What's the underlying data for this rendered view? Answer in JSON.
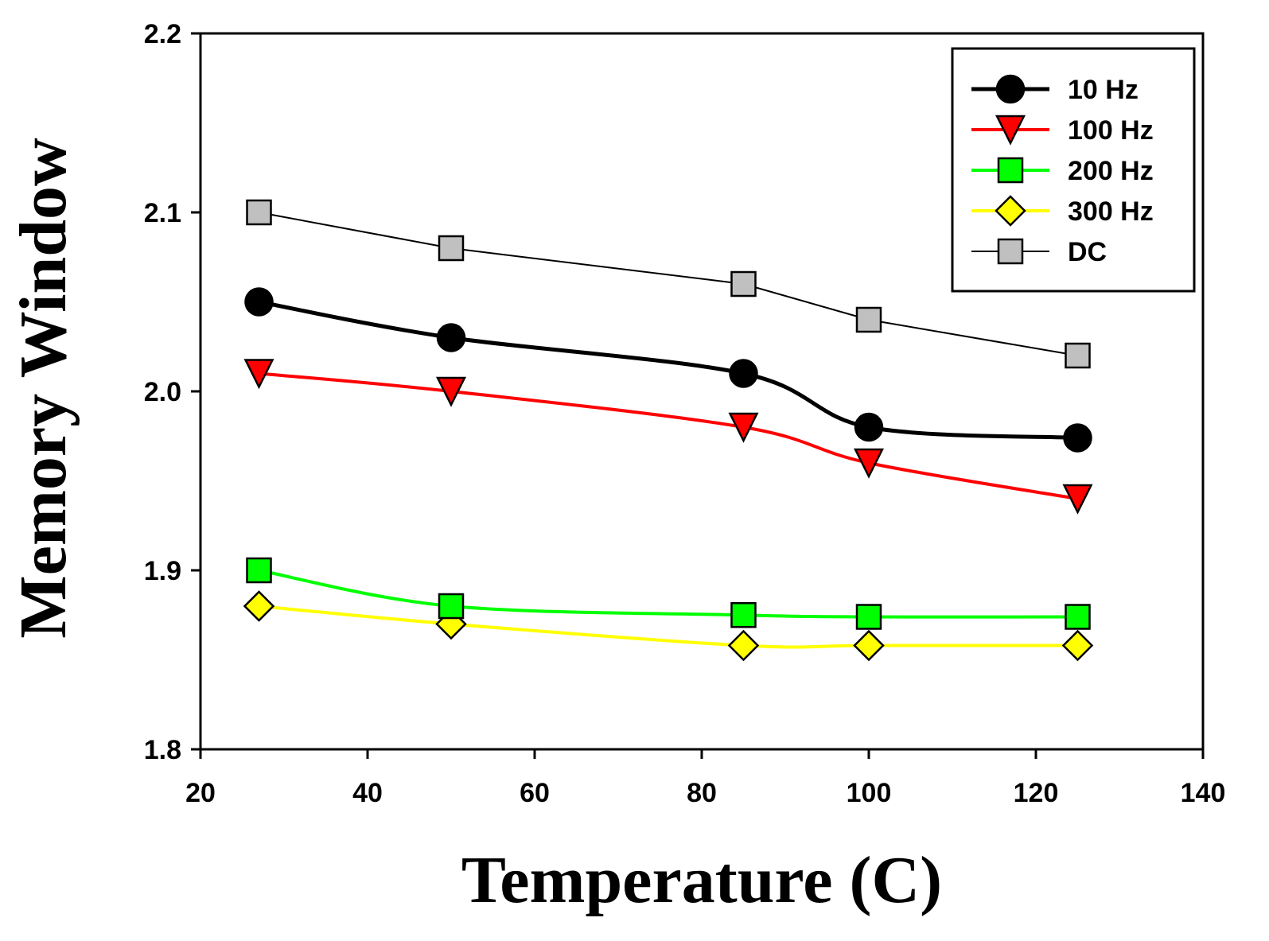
{
  "chart_data": {
    "type": "line",
    "title": "",
    "xlabel": "Temperature (C)",
    "ylabel": "Memory Window",
    "xlim": [
      20,
      140
    ],
    "ylim": [
      1.8,
      2.2
    ],
    "xticks": [
      20,
      40,
      60,
      80,
      100,
      120,
      140
    ],
    "yticks": [
      1.8,
      1.9,
      2.0,
      2.1,
      2.2
    ],
    "xtick_labels": [
      "20",
      "40",
      "60",
      "80",
      "100",
      "120",
      "140"
    ],
    "ytick_labels": [
      "1.8",
      "1.9",
      "2.0",
      "2.1",
      "2.2"
    ],
    "grid": false,
    "legend_position": "top-right",
    "x": [
      27,
      50,
      85,
      100,
      125
    ],
    "series": [
      {
        "name": "10 Hz",
        "values": [
          2.05,
          2.03,
          2.01,
          1.98,
          1.974
        ],
        "color": "#000000",
        "marker": "circle",
        "marker_fill": "#000000",
        "line_width": 5
      },
      {
        "name": "100 Hz",
        "values": [
          2.01,
          2.0,
          1.98,
          1.96,
          1.94
        ],
        "color": "#ff0000",
        "marker": "triangle-down",
        "marker_fill": "#ff0000",
        "line_width": 4
      },
      {
        "name": "200 Hz",
        "values": [
          1.9,
          1.88,
          1.875,
          1.874,
          1.874
        ],
        "color": "#00ff00",
        "marker": "square",
        "marker_fill": "#00ff00",
        "line_width": 4
      },
      {
        "name": "300 Hz",
        "values": [
          1.88,
          1.87,
          1.858,
          1.858,
          1.858
        ],
        "color": "#ffff00",
        "marker": "diamond",
        "marker_fill": "#ffff00",
        "line_width": 4
      },
      {
        "name": "DC",
        "values": [
          2.1,
          2.08,
          2.06,
          2.04,
          2.02
        ],
        "color": "#000000",
        "marker": "square",
        "marker_fill": "#c0c0c0",
        "line_width": 2
      }
    ]
  }
}
